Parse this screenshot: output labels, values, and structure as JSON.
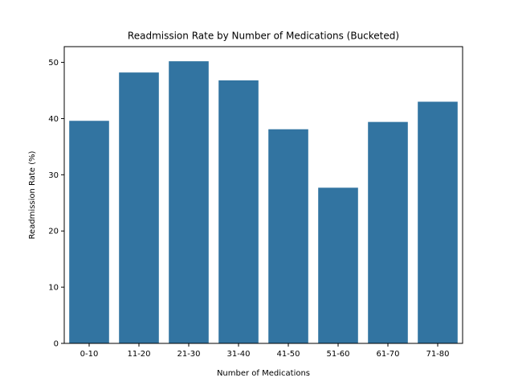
{
  "chart_data": {
    "type": "bar",
    "title": "Readmission Rate by Number of Medications (Bucketed)",
    "xlabel": "Number of Medications",
    "ylabel": "Readmission Rate (%)",
    "categories": [
      "0-10",
      "11-20",
      "21-30",
      "31-40",
      "41-50",
      "51-60",
      "61-70",
      "71-80"
    ],
    "values": [
      39.6,
      48.2,
      50.2,
      46.8,
      38.1,
      27.7,
      39.4,
      43.0
    ],
    "ylim": [
      0,
      52.8
    ],
    "yticks": [
      0,
      10,
      20,
      30,
      40,
      50
    ],
    "grid": false,
    "bar_color": "#3274a1"
  }
}
